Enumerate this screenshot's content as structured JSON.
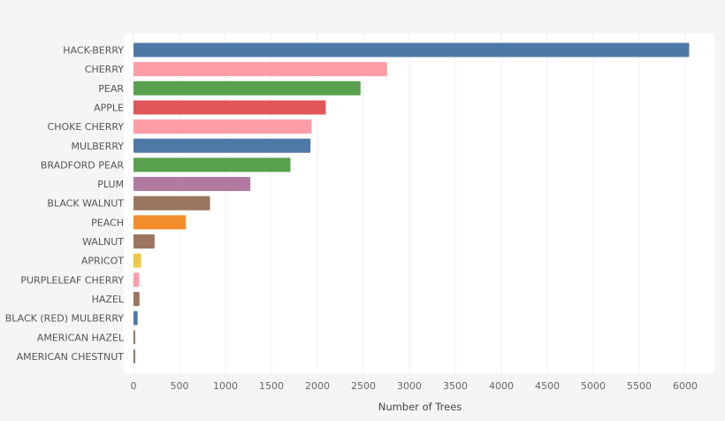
{
  "chart_data": {
    "type": "bar",
    "orientation": "horizontal",
    "title": "",
    "xlabel": "Number of Trees",
    "ylabel": "",
    "xlim": [
      0,
      6300
    ],
    "xticks": [
      0,
      500,
      1000,
      1500,
      2000,
      2500,
      3000,
      3500,
      4000,
      4500,
      5000,
      5500,
      6000
    ],
    "grid": true,
    "categories": [
      "HACK-BERRY",
      "CHERRY",
      "PEAR",
      "APPLE",
      "CHOKE CHERRY",
      "MULBERRY",
      "BRADFORD PEAR",
      "PLUM",
      "BLACK WALNUT",
      "PEACH",
      "WALNUT",
      "APRICOT",
      "PURPLELEAF CHERRY",
      "HAZEL",
      "BLACK (RED) MULBERRY",
      "AMERICAN HAZEL",
      "AMERICAN CHESTNUT"
    ],
    "values": [
      6043,
      2758,
      2469,
      2091,
      1937,
      1925,
      1707,
      1271,
      832,
      570,
      229,
      83,
      62,
      65,
      45,
      15,
      12
    ],
    "colors": [
      "#4e79a7",
      "#ff9da7",
      "#59a14f",
      "#e15759",
      "#ff9da7",
      "#4e79a7",
      "#59a14f",
      "#b07aa1",
      "#9c755f",
      "#f28e2b",
      "#9c755f",
      "#edc948",
      "#ff9da7",
      "#9c755f",
      "#4e79a7",
      "#9c755f",
      "#9c755f"
    ]
  }
}
